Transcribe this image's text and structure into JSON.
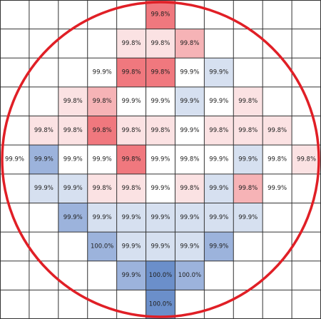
{
  "chart_data": {
    "type": "heatmap",
    "title": "",
    "grid": true,
    "colors": {
      "low": "#5b84c4",
      "mid": "#ffffff",
      "high": "#f0626b",
      "grid_line": "#333333",
      "wafer_outline": "#e01f26"
    },
    "color_scale": [
      {
        "level": -3,
        "color": "#6b8fca"
      },
      {
        "level": -2,
        "color": "#9cb3dc"
      },
      {
        "level": -1,
        "color": "#d6e0f0"
      },
      {
        "level": 0,
        "color": "#ffffff"
      },
      {
        "level": 1,
        "color": "#fbe2e3"
      },
      {
        "level": 2,
        "color": "#f6b3b6"
      },
      {
        "level": 3,
        "color": "#f0787e"
      }
    ],
    "rows": 11,
    "cols": 11,
    "cells": [
      {
        "row": 0,
        "col": 5,
        "label": "99.8%",
        "level": 3
      },
      {
        "row": 1,
        "col": 4,
        "label": "99.8%",
        "level": 1
      },
      {
        "row": 1,
        "col": 5,
        "label": "99.8%",
        "level": 1
      },
      {
        "row": 1,
        "col": 6,
        "label": "99.8%",
        "level": 2
      },
      {
        "row": 2,
        "col": 3,
        "label": "99.9%",
        "level": 0
      },
      {
        "row": 2,
        "col": 4,
        "label": "99.8%",
        "level": 3
      },
      {
        "row": 2,
        "col": 5,
        "label": "99.8%",
        "level": 3
      },
      {
        "row": 2,
        "col": 6,
        "label": "99.9%",
        "level": 0
      },
      {
        "row": 2,
        "col": 7,
        "label": "99.9%",
        "level": -1
      },
      {
        "row": 3,
        "col": 2,
        "label": "99.8%",
        "level": 1
      },
      {
        "row": 3,
        "col": 3,
        "label": "99.8%",
        "level": 2
      },
      {
        "row": 3,
        "col": 4,
        "label": "99.9%",
        "level": 0
      },
      {
        "row": 3,
        "col": 5,
        "label": "99.9%",
        "level": 0
      },
      {
        "row": 3,
        "col": 6,
        "label": "99.9%",
        "level": -1
      },
      {
        "row": 3,
        "col": 7,
        "label": "99.9%",
        "level": 0
      },
      {
        "row": 3,
        "col": 8,
        "label": "99.8%",
        "level": 1
      },
      {
        "row": 4,
        "col": 1,
        "label": "99.8%",
        "level": 1
      },
      {
        "row": 4,
        "col": 2,
        "label": "99.8%",
        "level": 1
      },
      {
        "row": 4,
        "col": 3,
        "label": "99.8%",
        "level": 3
      },
      {
        "row": 4,
        "col": 4,
        "label": "99.8%",
        "level": 1
      },
      {
        "row": 4,
        "col": 5,
        "label": "99.8%",
        "level": 1
      },
      {
        "row": 4,
        "col": 6,
        "label": "99.9%",
        "level": 0
      },
      {
        "row": 4,
        "col": 7,
        "label": "99.8%",
        "level": 1
      },
      {
        "row": 4,
        "col": 8,
        "label": "99.8%",
        "level": 1
      },
      {
        "row": 4,
        "col": 9,
        "label": "99.8%",
        "level": 1
      },
      {
        "row": 5,
        "col": 0,
        "label": "99.9%",
        "level": 0
      },
      {
        "row": 5,
        "col": 1,
        "label": "99.9%",
        "level": -2
      },
      {
        "row": 5,
        "col": 2,
        "label": "99.9%",
        "level": 0
      },
      {
        "row": 5,
        "col": 3,
        "label": "99.9%",
        "level": 0
      },
      {
        "row": 5,
        "col": 4,
        "label": "99.8%",
        "level": 3
      },
      {
        "row": 5,
        "col": 5,
        "label": "99.9%",
        "level": 0
      },
      {
        "row": 5,
        "col": 6,
        "label": "99.8%",
        "level": 0
      },
      {
        "row": 5,
        "col": 7,
        "label": "99.9%",
        "level": 0
      },
      {
        "row": 5,
        "col": 8,
        "label": "99.9%",
        "level": -1
      },
      {
        "row": 5,
        "col": 9,
        "label": "99.8%",
        "level": 0
      },
      {
        "row": 5,
        "col": 10,
        "label": "99.8%",
        "level": 1
      },
      {
        "row": 6,
        "col": 1,
        "label": "99.9%",
        "level": -1
      },
      {
        "row": 6,
        "col": 2,
        "label": "99.9%",
        "level": -1
      },
      {
        "row": 6,
        "col": 3,
        "label": "99.8%",
        "level": 1
      },
      {
        "row": 6,
        "col": 4,
        "label": "99.8%",
        "level": 1
      },
      {
        "row": 6,
        "col": 5,
        "label": "99.9%",
        "level": 0
      },
      {
        "row": 6,
        "col": 6,
        "label": "99.8%",
        "level": 1
      },
      {
        "row": 6,
        "col": 7,
        "label": "99.9%",
        "level": -1
      },
      {
        "row": 6,
        "col": 8,
        "label": "99.8%",
        "level": 2
      },
      {
        "row": 6,
        "col": 9,
        "label": "99.9%",
        "level": 0
      },
      {
        "row": 7,
        "col": 2,
        "label": "99.9%",
        "level": -2
      },
      {
        "row": 7,
        "col": 3,
        "label": "99.9%",
        "level": -1
      },
      {
        "row": 7,
        "col": 4,
        "label": "99.9%",
        "level": -1
      },
      {
        "row": 7,
        "col": 5,
        "label": "99.9%",
        "level": -1
      },
      {
        "row": 7,
        "col": 6,
        "label": "99.9%",
        "level": -1
      },
      {
        "row": 7,
        "col": 7,
        "label": "99.9%",
        "level": -1
      },
      {
        "row": 7,
        "col": 8,
        "label": "99.9%",
        "level": -1
      },
      {
        "row": 8,
        "col": 3,
        "label": "100.0%",
        "level": -2
      },
      {
        "row": 8,
        "col": 4,
        "label": "99.9%",
        "level": -1
      },
      {
        "row": 8,
        "col": 5,
        "label": "99.9%",
        "level": -1
      },
      {
        "row": 8,
        "col": 6,
        "label": "99.9%",
        "level": -1
      },
      {
        "row": 8,
        "col": 7,
        "label": "99.9%",
        "level": -2
      },
      {
        "row": 9,
        "col": 4,
        "label": "99.9%",
        "level": -2
      },
      {
        "row": 9,
        "col": 5,
        "label": "100.0%",
        "level": -3
      },
      {
        "row": 9,
        "col": 6,
        "label": "100.0%",
        "level": -2
      },
      {
        "row": 10,
        "col": 5,
        "label": "100.0%",
        "level": -3
      }
    ]
  }
}
